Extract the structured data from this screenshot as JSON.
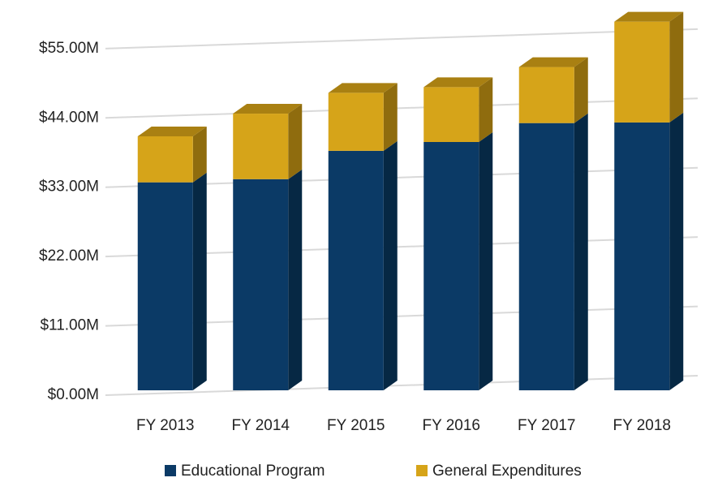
{
  "chart_data": {
    "type": "bar",
    "stacked": true,
    "categories": [
      "FY 2013",
      "FY 2014",
      "FY 2015",
      "FY 2016",
      "FY 2017",
      "FY 2018"
    ],
    "series": [
      {
        "name": "Educational Program",
        "color": "#0b3a66",
        "side_color": "#062844",
        "top_color": "#082e52",
        "values": [
          33.0,
          33.5,
          38.0,
          39.4,
          42.4,
          42.5
        ]
      },
      {
        "name": "General Expenditures",
        "color": "#d6a419",
        "side_color": "#8f6c0e",
        "top_color": "#a98012",
        "values": [
          7.3,
          10.4,
          9.2,
          8.7,
          8.9,
          16.0
        ]
      }
    ],
    "ylim": [
      0,
      60
    ],
    "yticks": [
      {
        "value": 0,
        "label": "$0.00M"
      },
      {
        "value": 11,
        "label": "$11.00M"
      },
      {
        "value": 22,
        "label": "$22.00M"
      },
      {
        "value": 33,
        "label": "$33.00M"
      },
      {
        "value": 44,
        "label": "$44.00M"
      },
      {
        "value": 55,
        "label": "$55.00M"
      }
    ],
    "grid": true,
    "legend": "bottom"
  }
}
